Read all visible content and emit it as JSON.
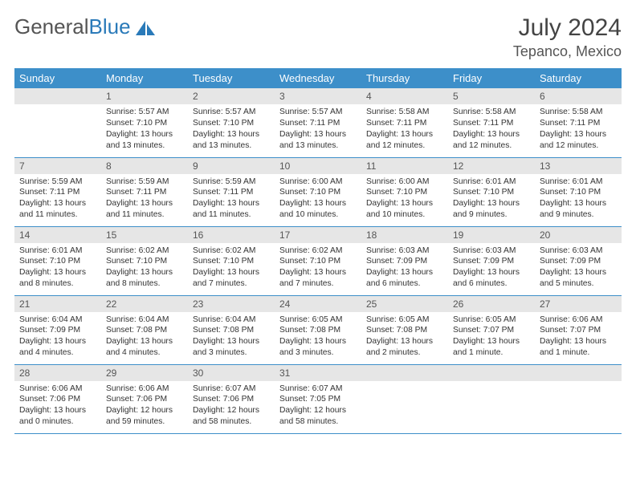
{
  "colors": {
    "header_bg": "#3d8fc9",
    "header_text": "#ffffff",
    "daynum_bg": "#e6e6e6",
    "daynum_text": "#555555",
    "body_text": "#333333",
    "rule": "#3d8fc9",
    "logo_gray": "#555555",
    "logo_blue": "#2a7ab9"
  },
  "logo": {
    "word1": "General",
    "word2": "Blue"
  },
  "title": "July 2024",
  "location": "Tepanco, Mexico",
  "weekdays": [
    "Sunday",
    "Monday",
    "Tuesday",
    "Wednesday",
    "Thursday",
    "Friday",
    "Saturday"
  ],
  "weeks": [
    [
      {
        "n": "",
        "sr": "",
        "ss": "",
        "dl": ""
      },
      {
        "n": "1",
        "sr": "5:57 AM",
        "ss": "7:10 PM",
        "dl": "13 hours and 13 minutes."
      },
      {
        "n": "2",
        "sr": "5:57 AM",
        "ss": "7:10 PM",
        "dl": "13 hours and 13 minutes."
      },
      {
        "n": "3",
        "sr": "5:57 AM",
        "ss": "7:11 PM",
        "dl": "13 hours and 13 minutes."
      },
      {
        "n": "4",
        "sr": "5:58 AM",
        "ss": "7:11 PM",
        "dl": "13 hours and 12 minutes."
      },
      {
        "n": "5",
        "sr": "5:58 AM",
        "ss": "7:11 PM",
        "dl": "13 hours and 12 minutes."
      },
      {
        "n": "6",
        "sr": "5:58 AM",
        "ss": "7:11 PM",
        "dl": "13 hours and 12 minutes."
      }
    ],
    [
      {
        "n": "7",
        "sr": "5:59 AM",
        "ss": "7:11 PM",
        "dl": "13 hours and 11 minutes."
      },
      {
        "n": "8",
        "sr": "5:59 AM",
        "ss": "7:11 PM",
        "dl": "13 hours and 11 minutes."
      },
      {
        "n": "9",
        "sr": "5:59 AM",
        "ss": "7:11 PM",
        "dl": "13 hours and 11 minutes."
      },
      {
        "n": "10",
        "sr": "6:00 AM",
        "ss": "7:10 PM",
        "dl": "13 hours and 10 minutes."
      },
      {
        "n": "11",
        "sr": "6:00 AM",
        "ss": "7:10 PM",
        "dl": "13 hours and 10 minutes."
      },
      {
        "n": "12",
        "sr": "6:01 AM",
        "ss": "7:10 PM",
        "dl": "13 hours and 9 minutes."
      },
      {
        "n": "13",
        "sr": "6:01 AM",
        "ss": "7:10 PM",
        "dl": "13 hours and 9 minutes."
      }
    ],
    [
      {
        "n": "14",
        "sr": "6:01 AM",
        "ss": "7:10 PM",
        "dl": "13 hours and 8 minutes."
      },
      {
        "n": "15",
        "sr": "6:02 AM",
        "ss": "7:10 PM",
        "dl": "13 hours and 8 minutes."
      },
      {
        "n": "16",
        "sr": "6:02 AM",
        "ss": "7:10 PM",
        "dl": "13 hours and 7 minutes."
      },
      {
        "n": "17",
        "sr": "6:02 AM",
        "ss": "7:10 PM",
        "dl": "13 hours and 7 minutes."
      },
      {
        "n": "18",
        "sr": "6:03 AM",
        "ss": "7:09 PM",
        "dl": "13 hours and 6 minutes."
      },
      {
        "n": "19",
        "sr": "6:03 AM",
        "ss": "7:09 PM",
        "dl": "13 hours and 6 minutes."
      },
      {
        "n": "20",
        "sr": "6:03 AM",
        "ss": "7:09 PM",
        "dl": "13 hours and 5 minutes."
      }
    ],
    [
      {
        "n": "21",
        "sr": "6:04 AM",
        "ss": "7:09 PM",
        "dl": "13 hours and 4 minutes."
      },
      {
        "n": "22",
        "sr": "6:04 AM",
        "ss": "7:08 PM",
        "dl": "13 hours and 4 minutes."
      },
      {
        "n": "23",
        "sr": "6:04 AM",
        "ss": "7:08 PM",
        "dl": "13 hours and 3 minutes."
      },
      {
        "n": "24",
        "sr": "6:05 AM",
        "ss": "7:08 PM",
        "dl": "13 hours and 3 minutes."
      },
      {
        "n": "25",
        "sr": "6:05 AM",
        "ss": "7:08 PM",
        "dl": "13 hours and 2 minutes."
      },
      {
        "n": "26",
        "sr": "6:05 AM",
        "ss": "7:07 PM",
        "dl": "13 hours and 1 minute."
      },
      {
        "n": "27",
        "sr": "6:06 AM",
        "ss": "7:07 PM",
        "dl": "13 hours and 1 minute."
      }
    ],
    [
      {
        "n": "28",
        "sr": "6:06 AM",
        "ss": "7:06 PM",
        "dl": "13 hours and 0 minutes."
      },
      {
        "n": "29",
        "sr": "6:06 AM",
        "ss": "7:06 PM",
        "dl": "12 hours and 59 minutes."
      },
      {
        "n": "30",
        "sr": "6:07 AM",
        "ss": "7:06 PM",
        "dl": "12 hours and 58 minutes."
      },
      {
        "n": "31",
        "sr": "6:07 AM",
        "ss": "7:05 PM",
        "dl": "12 hours and 58 minutes."
      },
      {
        "n": "",
        "sr": "",
        "ss": "",
        "dl": ""
      },
      {
        "n": "",
        "sr": "",
        "ss": "",
        "dl": ""
      },
      {
        "n": "",
        "sr": "",
        "ss": "",
        "dl": ""
      }
    ]
  ],
  "labels": {
    "sunrise": "Sunrise:",
    "sunset": "Sunset:",
    "daylight": "Daylight:"
  }
}
